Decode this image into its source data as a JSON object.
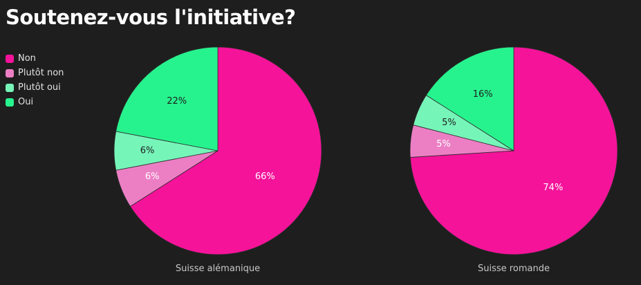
{
  "title": "Soutenez-vous l'initiative?",
  "legend": [
    {
      "label": "Non",
      "color": "#f5139a"
    },
    {
      "label": "Plutôt non",
      "color": "#ec7fc4"
    },
    {
      "label": "Plutôt oui",
      "color": "#76f5b9"
    },
    {
      "label": "Oui",
      "color": "#27f38e"
    }
  ],
  "chart_data": [
    {
      "type": "pie",
      "title": "Suisse alémanique",
      "categories": [
        "Non",
        "Plutôt non",
        "Plutôt oui",
        "Oui"
      ],
      "values": [
        66,
        6,
        6,
        22
      ],
      "labels": [
        "66%",
        "6%",
        "6%",
        "22%"
      ],
      "label_colors": [
        "#ffffff",
        "#ffffff",
        "#1e1e1e",
        "#1e1e1e"
      ],
      "start": "12 o'clock",
      "direction": "clockwise"
    },
    {
      "type": "pie",
      "title": "Suisse romande",
      "categories": [
        "Non",
        "Plutôt non",
        "Plutôt oui",
        "Oui"
      ],
      "values": [
        74,
        5,
        5,
        16
      ],
      "labels": [
        "74%",
        "5%",
        "5%",
        "16%"
      ],
      "label_colors": [
        "#ffffff",
        "#ffffff",
        "#1e1e1e",
        "#1e1e1e"
      ],
      "start": "12 o'clock",
      "direction": "clockwise"
    }
  ]
}
